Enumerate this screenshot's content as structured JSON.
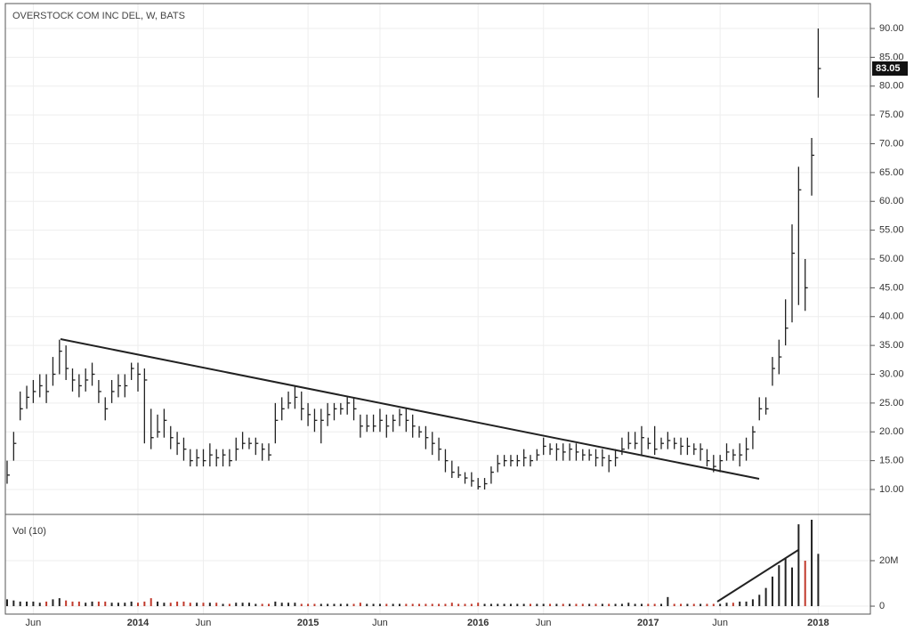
{
  "chart_data": [
    {
      "type": "ohlc",
      "title": "OVERSTOCK COM INC DEL, W, BATS",
      "categories": [
        null,
        null,
        null,
        null,
        "Jun",
        null,
        null,
        null,
        null,
        null,
        null,
        null,
        null,
        null,
        null,
        null,
        null,
        null,
        null,
        null,
        "2014",
        null,
        null,
        null,
        null,
        null,
        null,
        null,
        null,
        null,
        "Jun",
        null,
        null,
        null,
        null,
        null,
        null,
        null,
        null,
        null,
        null,
        null,
        null,
        null,
        null,
        null,
        "2015",
        null,
        null,
        null,
        null,
        null,
        null,
        null,
        null,
        null,
        null,
        "Jun",
        null,
        null,
        null,
        null,
        null,
        null,
        null,
        null,
        null,
        null,
        null,
        null,
        null,
        null,
        "2016",
        null,
        null,
        null,
        null,
        null,
        null,
        null,
        null,
        null,
        "Jun",
        null,
        null,
        null,
        null,
        null,
        null,
        null,
        null,
        null,
        null,
        null,
        null,
        null,
        null,
        null,
        "2017",
        null,
        null,
        null,
        null,
        null,
        null,
        null,
        null,
        null,
        null,
        "Jun",
        null,
        null,
        null,
        null,
        null,
        null,
        null,
        null,
        null,
        null,
        null,
        null,
        null,
        null,
        "2018"
      ],
      "high": [
        15,
        20,
        27,
        28,
        29,
        30,
        30,
        33,
        36,
        35,
        31,
        30,
        31,
        32,
        29,
        26,
        29,
        30,
        30,
        32,
        32,
        31,
        24,
        23,
        24,
        21,
        20,
        19,
        17,
        17,
        17,
        18,
        17,
        17,
        17,
        19,
        20,
        19,
        19,
        18,
        18,
        25,
        26,
        27,
        28,
        27,
        25,
        24,
        24,
        25,
        25,
        25,
        26,
        26,
        23,
        23,
        23,
        24,
        23,
        23,
        24,
        24,
        23,
        21,
        21,
        20,
        19,
        17,
        15,
        14,
        13,
        13,
        12,
        12,
        14,
        16,
        16,
        16,
        16,
        17,
        16,
        17,
        19,
        18,
        18,
        18,
        18,
        18,
        17,
        17,
        17,
        17,
        16,
        17,
        19,
        20,
        20,
        21,
        19,
        21,
        19,
        20,
        19,
        19,
        19,
        18,
        18,
        17,
        16,
        16,
        18,
        17,
        18,
        19,
        21,
        26,
        26,
        33,
        36,
        43,
        56,
        66,
        50,
        71,
        90
      ],
      "low": [
        11,
        15,
        22,
        24,
        25,
        26,
        25,
        28,
        30,
        29,
        27,
        26,
        27,
        28,
        25,
        22,
        25,
        26,
        26,
        29,
        27,
        18,
        17,
        19,
        19,
        17,
        16,
        15,
        14,
        14,
        14,
        14,
        14,
        14,
        14,
        15,
        17,
        17,
        16,
        15,
        15,
        18,
        22,
        24,
        24,
        22,
        21,
        20,
        18,
        21,
        22,
        23,
        23,
        22,
        19,
        20,
        20,
        20,
        19,
        20,
        21,
        20,
        19,
        19,
        17,
        16,
        15,
        13,
        12,
        12,
        11,
        10.5,
        10,
        10,
        11,
        13,
        14,
        14,
        14,
        14,
        14,
        15,
        16,
        16,
        15,
        15,
        15,
        15,
        15,
        15,
        14,
        14,
        13,
        14,
        16,
        17,
        17,
        16,
        17,
        16,
        17,
        17,
        17,
        16,
        16,
        16,
        15,
        14,
        13,
        13,
        15,
        15,
        14,
        15,
        17,
        22,
        23,
        28,
        30,
        35,
        39,
        42,
        41,
        61,
        78
      ],
      "close": [
        12.5,
        18,
        24,
        26,
        27,
        28,
        27,
        30,
        34,
        31,
        29,
        28,
        29,
        30,
        27,
        24,
        27,
        28,
        28,
        31,
        30,
        29,
        19,
        20,
        22,
        19,
        18,
        17,
        15,
        15.5,
        15,
        16,
        15.5,
        16,
        15,
        17,
        18,
        18,
        18,
        17,
        16,
        22,
        24,
        25,
        26,
        24,
        23,
        22,
        22,
        23,
        24,
        24,
        25,
        24,
        21,
        21,
        21,
        22,
        21,
        22,
        23,
        22,
        21,
        20,
        19,
        18,
        17,
        15,
        13,
        12.5,
        12,
        11.5,
        10.5,
        11,
        13,
        14.5,
        15,
        15,
        15,
        15.5,
        15,
        16,
        17.5,
        17,
        17,
        16.5,
        17,
        16.5,
        16,
        16,
        15.5,
        15.5,
        15,
        15.5,
        17,
        18,
        18,
        19,
        18,
        17,
        18,
        18.5,
        18,
        17.5,
        17.5,
        17,
        17,
        15,
        14,
        15,
        16.5,
        16,
        16,
        17,
        20,
        24,
        24,
        31,
        33,
        38,
        51,
        62,
        45,
        68,
        83.05
      ],
      "color": "#222222",
      "ylim": [
        5.83,
        94.17
      ],
      "yticks": [
        {
          "value": 10,
          "label": "10.00"
        },
        {
          "value": 15,
          "label": "15.00"
        },
        {
          "value": 20,
          "label": "20.00"
        },
        {
          "value": 25,
          "label": "25.00"
        },
        {
          "value": 30,
          "label": "30.00"
        },
        {
          "value": 35,
          "label": "35.00"
        },
        {
          "value": 40,
          "label": "40.00"
        },
        {
          "value": 45,
          "label": "45.00"
        },
        {
          "value": 50,
          "label": "50.00"
        },
        {
          "value": 55,
          "label": "55.00"
        },
        {
          "value": 60,
          "label": "60.00"
        },
        {
          "value": 65,
          "label": "65.00"
        },
        {
          "value": 70,
          "label": "70.00"
        },
        {
          "value": 75,
          "label": "75.00"
        },
        {
          "value": 80,
          "label": "80.00"
        },
        {
          "value": 85,
          "label": "85.00"
        },
        {
          "value": 90,
          "label": "90.00"
        }
      ],
      "grid": true
    },
    {
      "type": "bar",
      "title": "Vol (10)",
      "values": [
        3,
        2.5,
        2,
        2,
        2,
        1.5,
        2,
        3,
        3.5,
        2.5,
        2,
        2,
        1.5,
        2,
        2,
        2,
        1.5,
        1.5,
        1.5,
        2,
        1.5,
        2,
        3.5,
        2,
        1.5,
        1.5,
        2,
        2,
        1.5,
        1.5,
        1.5,
        1.5,
        1.5,
        1,
        1,
        1.5,
        1.5,
        1.5,
        1,
        1,
        1,
        2,
        1.5,
        1.5,
        1.5,
        1,
        1,
        1,
        1,
        1,
        1,
        1,
        1,
        1,
        1.5,
        1,
        1,
        1,
        1,
        1,
        1,
        1,
        1,
        1,
        1,
        1,
        1,
        1,
        1.5,
        1,
        1,
        1,
        1.5,
        1,
        1,
        1,
        1,
        1,
        1,
        1,
        1,
        1,
        1,
        1,
        1,
        1,
        1,
        1,
        1,
        1,
        1,
        1,
        1,
        1,
        1,
        1.5,
        1,
        1,
        1,
        1,
        1,
        4,
        1,
        1,
        1,
        1,
        1,
        1,
        1,
        1,
        1.5,
        1.5,
        2,
        2,
        3,
        5,
        8,
        13,
        18,
        21,
        17,
        36,
        20,
        38,
        23
      ],
      "up_color": "#222222",
      "down_color": "#c0392b",
      "ylim": [
        -3.5,
        38
      ],
      "yticks": [
        0,
        {
          "value": 20,
          "label": "20M"
        }
      ],
      "grid": true
    }
  ]
}
